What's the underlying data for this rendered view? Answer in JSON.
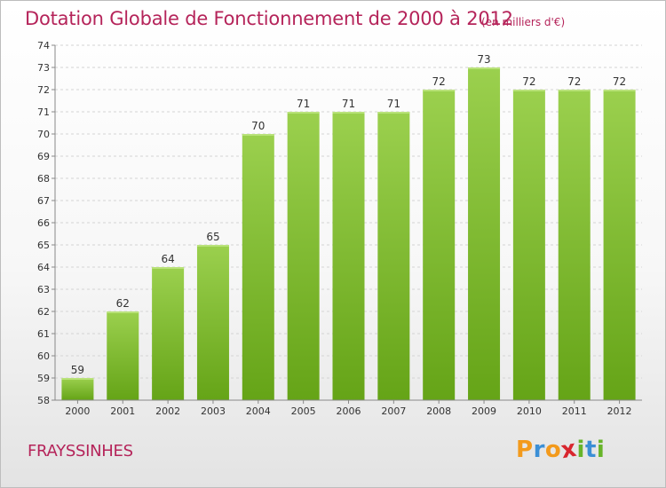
{
  "header": {
    "title": "Dotation Globale de Fonctionnement de 2000 à 2012",
    "subtitle": "(en milliers d'€)"
  },
  "footer": {
    "commune": "FRAYSSINHES",
    "logo_letters": [
      "P",
      "r",
      "o",
      "x",
      "i",
      "t",
      "i"
    ],
    "logo_colors": [
      "#f39a1c",
      "#3b8fd6",
      "#f39a1c",
      "#d8262e",
      "#67b42a",
      "#3b8fd6",
      "#67b42a"
    ]
  },
  "colors": {
    "bar_light": "#9bd04e",
    "bar_dark": "#65a417",
    "text_accent": "#b5245a",
    "grid": "#d4d4d4"
  },
  "chart_data": {
    "type": "bar",
    "title": "Dotation Globale de Fonctionnement de 2000 à 2012",
    "subtitle": "(en milliers d'€)",
    "categories": [
      "2000",
      "2001",
      "2002",
      "2003",
      "2004",
      "2005",
      "2006",
      "2007",
      "2008",
      "2009",
      "2010",
      "2011",
      "2012"
    ],
    "values": [
      59,
      62,
      64,
      65,
      70,
      71,
      71,
      71,
      72,
      73,
      72,
      72,
      72
    ],
    "ylim": [
      58,
      74
    ],
    "yticks": [
      58,
      59,
      60,
      61,
      62,
      63,
      64,
      65,
      66,
      67,
      68,
      69,
      70,
      71,
      72,
      73,
      74
    ],
    "grid": true,
    "data_labels": true
  }
}
